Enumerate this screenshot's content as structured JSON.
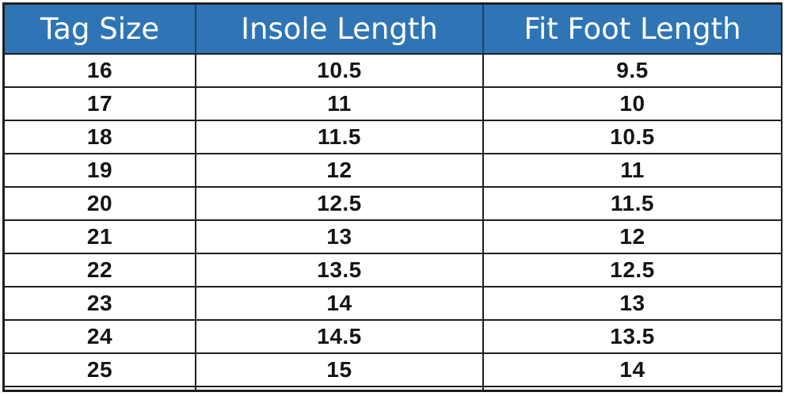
{
  "chart_data": {
    "type": "table",
    "columns": [
      "Tag Size",
      "Insole Length",
      "Fit Foot Length"
    ],
    "rows": [
      [
        "16",
        "10.5",
        "9.5"
      ],
      [
        "17",
        "11",
        "10"
      ],
      [
        "18",
        "11.5",
        "10.5"
      ],
      [
        "19",
        "12",
        "11"
      ],
      [
        "20",
        "12.5",
        "11.5"
      ],
      [
        "21",
        "13",
        "12"
      ],
      [
        "22",
        "13.5",
        "12.5"
      ],
      [
        "23",
        "14",
        "13"
      ],
      [
        "24",
        "14.5",
        "13.5"
      ],
      [
        "25",
        "15",
        "14"
      ]
    ]
  },
  "colors": {
    "header_bg": "#2F75B5",
    "header_text": "#FFFFFF",
    "header_divider": "#1D4369",
    "border": "#1F1F1F",
    "body_text": "#141414"
  }
}
